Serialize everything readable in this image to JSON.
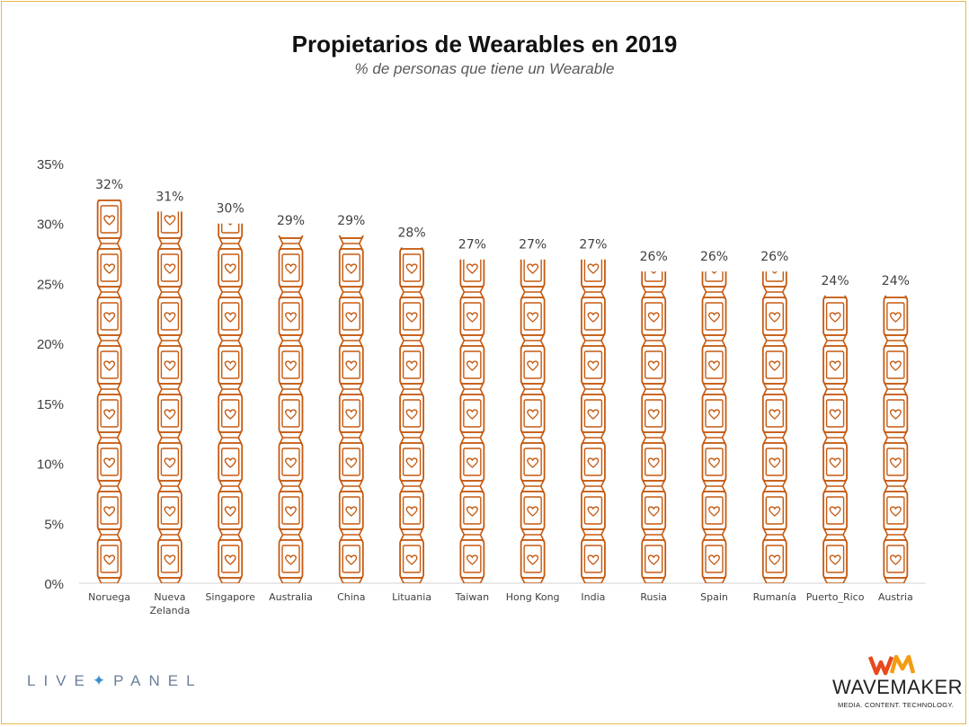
{
  "title": "Propietarios de Wearables en 2019",
  "subtitle": "% de personas que tiene un Wearable",
  "chart_data": {
    "type": "bar",
    "title": "Propietarios de Wearables en 2019",
    "subtitle": "% de personas que tiene un Wearable",
    "categories": [
      "Noruega",
      "Nueva Zelanda",
      "Singapore",
      "Australia",
      "China",
      "Lituania",
      "Taiwan",
      "Hong Kong",
      "India",
      "Rusia",
      "Spain",
      "Rumanía",
      "Puerto_Rico",
      "Austria"
    ],
    "category_lines": [
      [
        "Noruega"
      ],
      [
        "Nueva",
        "Zelanda"
      ],
      [
        "Singapore"
      ],
      [
        "Australia"
      ],
      [
        "China"
      ],
      [
        "Lituania"
      ],
      [
        "Taiwan"
      ],
      [
        "Hong Kong"
      ],
      [
        "India"
      ],
      [
        "Rusia"
      ],
      [
        "Spain"
      ],
      [
        "Rumanía"
      ],
      [
        "Puerto_Rico"
      ],
      [
        "Austria"
      ]
    ],
    "values": [
      32,
      31,
      30,
      29,
      29,
      28,
      27,
      27,
      27,
      26,
      26,
      26,
      24,
      24
    ],
    "data_labels": [
      "32%",
      "31%",
      "30%",
      "29%",
      "29%",
      "28%",
      "27%",
      "27%",
      "27%",
      "26%",
      "26%",
      "26%",
      "24%",
      "24%"
    ],
    "ylim": [
      0,
      35
    ],
    "yticks": [
      0,
      5,
      10,
      15,
      20,
      25,
      30,
      35
    ],
    "ytick_labels": [
      "0%",
      "5%",
      "10%",
      "15%",
      "20%",
      "25%",
      "30%",
      "35%"
    ],
    "xlabel": "",
    "ylabel": "",
    "grid": false,
    "legend": "none",
    "mark_style": "stacked smartwatch pictograms",
    "bar_color": "#c55a11"
  },
  "footer": {
    "left_logo_text": "LIVE PANEL",
    "left_logo_parts": [
      "LIVE",
      "PANEL"
    ],
    "right_logo_mark": "WM",
    "right_logo_name": "WAVEMAKER",
    "right_logo_tagline": "MEDIA. CONTENT. TECHNOLOGY."
  }
}
